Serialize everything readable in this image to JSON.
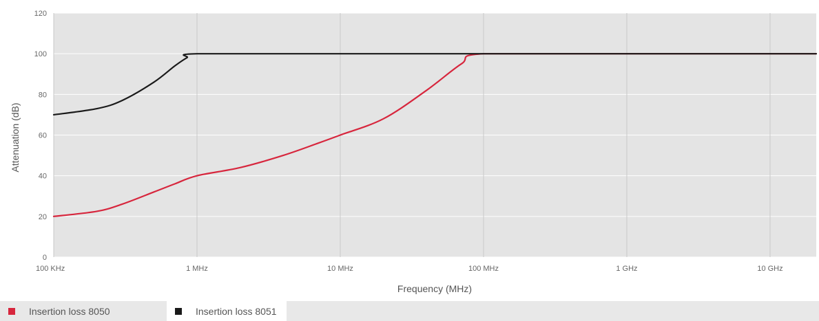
{
  "chart_data": {
    "type": "line",
    "title": "",
    "xlabel": "Frequency (MHz)",
    "ylabel": "Attenuation (dB)",
    "x_scale": "log",
    "x_unit": "MHz",
    "x_ticks": [
      {
        "value": 0.1,
        "label": "100 KHz"
      },
      {
        "value": 1,
        "label": "1 MHz"
      },
      {
        "value": 10,
        "label": "10 MHz"
      },
      {
        "value": 100,
        "label": "100 MHz"
      },
      {
        "value": 1000,
        "label": "1 GHz"
      },
      {
        "value": 10000,
        "label": "10 GHz"
      }
    ],
    "xlim": [
      0.1,
      21000
    ],
    "ylim": [
      0,
      120
    ],
    "y_ticks": [
      0,
      20,
      40,
      60,
      80,
      100,
      120
    ],
    "grid": true,
    "legend_position": "bottom-left",
    "series": [
      {
        "name": "Insertion loss 8050",
        "color": "#d7263d",
        "x": [
          0.1,
          0.2,
          0.3,
          0.5,
          0.7,
          1,
          2,
          4,
          7,
          10,
          20,
          40,
          70,
          100,
          1000,
          21000
        ],
        "y": [
          20,
          22.5,
          26,
          32,
          36,
          40,
          44,
          50,
          56,
          60,
          68,
          82,
          95,
          100,
          100,
          100
        ]
      },
      {
        "name": "Insertion loss 8051",
        "color": "#1a1a1a",
        "x": [
          0.1,
          0.2,
          0.3,
          0.5,
          0.7,
          0.85,
          1,
          10,
          100,
          1000,
          21000
        ],
        "y": [
          70,
          73,
          77,
          86,
          94,
          98,
          100,
          100,
          100,
          100,
          100
        ]
      }
    ]
  }
}
